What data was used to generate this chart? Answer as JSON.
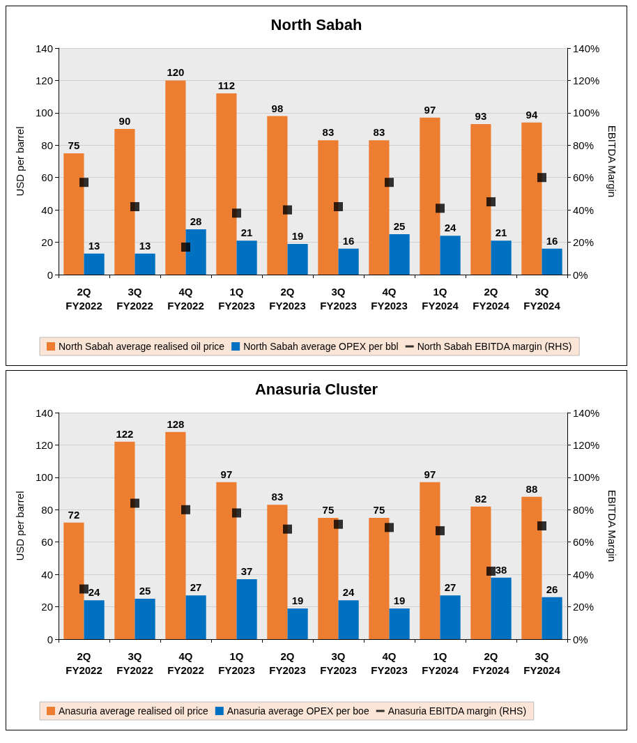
{
  "chart_data": [
    {
      "type": "bar",
      "title": "North Sabah",
      "ylabel": "USD per barrel",
      "y2label": "EBITDA Margin",
      "categories": [
        "2Q FY2022",
        "3Q FY2022",
        "4Q FY2022",
        "1Q FY2023",
        "2Q FY2023",
        "3Q FY2023",
        "4Q FY2023",
        "1Q FY2024",
        "2Q FY2024",
        "3Q FY2024"
      ],
      "series": [
        {
          "name": "North Sabah average realised oil price",
          "color": "#ed7d31",
          "values": [
            75,
            90,
            120,
            112,
            98,
            83,
            83,
            97,
            93,
            94
          ],
          "value_labels": [
            "75",
            "90",
            "120",
            "112",
            "98",
            "83",
            "83",
            "97",
            "93",
            "94"
          ]
        },
        {
          "name": "North Sabah average OPEX per bbl",
          "color": "#0070c0",
          "values": [
            13,
            13,
            28,
            21,
            19,
            16,
            25,
            24,
            21,
            16
          ],
          "value_labels": [
            "13",
            "13",
            "28",
            "21",
            "19",
            "16",
            "25",
            "24",
            "21",
            "16"
          ]
        },
        {
          "name": "North Sabah EBITDA margin (RHS)",
          "type": "scatter",
          "marker": "square",
          "color": "#000000",
          "values": [
            57,
            42,
            17,
            38,
            40,
            42,
            57,
            41,
            45,
            60
          ]
        }
      ],
      "ylim": [
        0,
        140
      ],
      "yticks": [
        0,
        20,
        40,
        60,
        80,
        100,
        120,
        140
      ],
      "y2lim": [
        0,
        140
      ],
      "y2ticks": [
        {
          "value": 0,
          "label": "0%"
        },
        {
          "value": 20,
          "label": "20%"
        },
        {
          "value": 40,
          "label": "40%"
        },
        {
          "value": 60,
          "label": "60%"
        },
        {
          "value": 80,
          "label": "80%"
        },
        {
          "value": 100,
          "label": "100%"
        },
        {
          "value": 120,
          "label": "120%"
        },
        {
          "value": 140,
          "label": "140%"
        }
      ],
      "grid": "y",
      "legend": "bottom"
    },
    {
      "type": "bar",
      "title": "Anasuria Cluster",
      "ylabel": "USD per barrel",
      "y2label": "EBITDA Margin",
      "categories": [
        "2Q FY2022",
        "3Q FY2022",
        "4Q FY2022",
        "1Q FY2023",
        "2Q FY2023",
        "3Q FY2023",
        "4Q FY2023",
        "1Q FY2024",
        "2Q FY2024",
        "3Q FY2024"
      ],
      "series": [
        {
          "name": "Anasuria average realised oil price",
          "color": "#ed7d31",
          "values": [
            72,
            122,
            128,
            97,
            83,
            75,
            75,
            97,
            82,
            88
          ],
          "value_labels": [
            "72",
            "122",
            "128",
            "97",
            "83",
            "75",
            "75",
            "97",
            "82",
            "88"
          ]
        },
        {
          "name": "Anasuria average OPEX per boe",
          "color": "#0070c0",
          "values": [
            24,
            25,
            27,
            37,
            19,
            24,
            19,
            27,
            38,
            26
          ],
          "value_labels": [
            "24",
            "25",
            "27",
            "37",
            "19",
            "24",
            "19",
            "27",
            "38",
            "26"
          ]
        },
        {
          "name": "Anasuria EBITDA margin (RHS)",
          "type": "scatter",
          "marker": "square",
          "color": "#000000",
          "values": [
            31,
            84,
            80,
            78,
            68,
            71,
            69,
            67,
            42,
            70
          ]
        }
      ],
      "ylim": [
        0,
        140
      ],
      "yticks": [
        0,
        20,
        40,
        60,
        80,
        100,
        120,
        140
      ],
      "y2lim": [
        0,
        140
      ],
      "y2ticks": [
        {
          "value": 0,
          "label": "0%"
        },
        {
          "value": 20,
          "label": "20%"
        },
        {
          "value": 40,
          "label": "40%"
        },
        {
          "value": 60,
          "label": "60%"
        },
        {
          "value": 80,
          "label": "80%"
        },
        {
          "value": 100,
          "label": "100%"
        },
        {
          "value": 120,
          "label": "120%"
        },
        {
          "value": 140,
          "label": "140%"
        }
      ],
      "grid": "y",
      "legend": "bottom"
    }
  ]
}
